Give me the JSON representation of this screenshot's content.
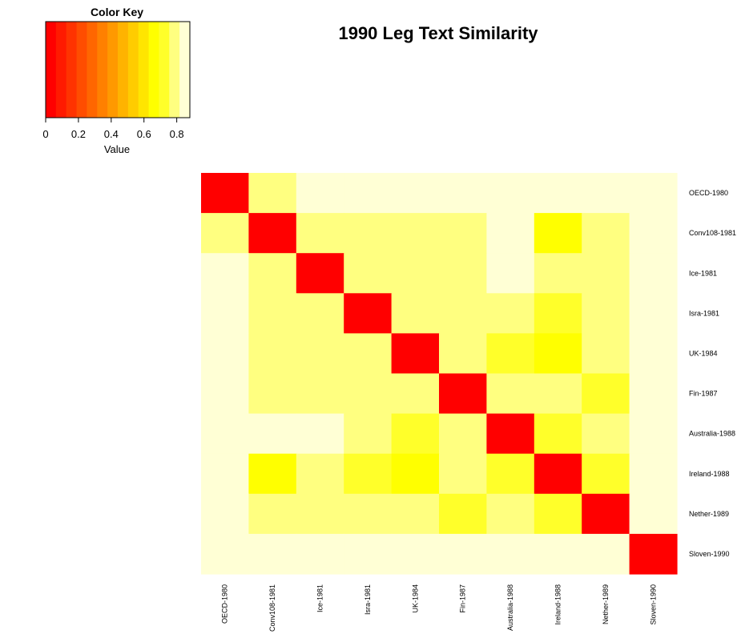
{
  "chart_data": {
    "type": "heatmap",
    "title": "1990 Leg Text Similarity",
    "color_key": {
      "title": "Color Key",
      "xlabel": "Value",
      "ticks": [
        "0",
        "0.2",
        "0.4",
        "0.6",
        "0.8"
      ],
      "tick_values": [
        0,
        0.2,
        0.4,
        0.6,
        0.8
      ],
      "range": [
        0,
        0.88
      ],
      "colors": [
        "#FF0000",
        "#FF1A00",
        "#FF3300",
        "#FF4D00",
        "#FF6600",
        "#FF8000",
        "#FF9900",
        "#FFB300",
        "#FFCC00",
        "#FFE500",
        "#FFFF00",
        "#FFFF2A",
        "#FFFF80",
        "#FFFFD5"
      ]
    },
    "rows": [
      "OECD-1980",
      "Conv108-1981",
      "Ice-1981",
      "Isra-1981",
      "UK-1984",
      "Fin-1987",
      "Australia-1988",
      "Ireland-1988",
      "Nether-1989",
      "Sloven-1990"
    ],
    "columns": [
      "OECD-1980",
      "Conv108-1981",
      "Ice-1981",
      "Isra-1981",
      "UK-1984",
      "Fin-1987",
      "Australia-1988",
      "Ireland-1988",
      "Nether-1989",
      "Sloven-1990"
    ],
    "colors": [
      [
        "#FF0000",
        "#FFFF80",
        "#FFFFD5",
        "#FFFFD5",
        "#FFFFD5",
        "#FFFFD5",
        "#FFFFD5",
        "#FFFFD5",
        "#FFFFD5",
        "#FFFFD5"
      ],
      [
        "#FFFF80",
        "#FF0000",
        "#FFFF80",
        "#FFFF80",
        "#FFFF80",
        "#FFFF80",
        "#FFFFD5",
        "#FFFF00",
        "#FFFF80",
        "#FFFFD5"
      ],
      [
        "#FFFFD5",
        "#FFFF80",
        "#FF0000",
        "#FFFF80",
        "#FFFF80",
        "#FFFF80",
        "#FFFFD5",
        "#FFFF80",
        "#FFFF80",
        "#FFFFD5"
      ],
      [
        "#FFFFD5",
        "#FFFF80",
        "#FFFF80",
        "#FF0000",
        "#FFFF80",
        "#FFFF80",
        "#FFFF80",
        "#FFFF2A",
        "#FFFF80",
        "#FFFFD5"
      ],
      [
        "#FFFFD5",
        "#FFFF80",
        "#FFFF80",
        "#FFFF80",
        "#FF0000",
        "#FFFF80",
        "#FFFF2A",
        "#FFFF00",
        "#FFFF80",
        "#FFFFD5"
      ],
      [
        "#FFFFD5",
        "#FFFF80",
        "#FFFF80",
        "#FFFF80",
        "#FFFF80",
        "#FF0000",
        "#FFFF80",
        "#FFFF80",
        "#FFFF2A",
        "#FFFFD5"
      ],
      [
        "#FFFFD5",
        "#FFFFD5",
        "#FFFFD5",
        "#FFFF80",
        "#FFFF2A",
        "#FFFF80",
        "#FF0000",
        "#FFFF2A",
        "#FFFF80",
        "#FFFFD5"
      ],
      [
        "#FFFFD5",
        "#FFFF00",
        "#FFFF80",
        "#FFFF2A",
        "#FFFF00",
        "#FFFF80",
        "#FFFF2A",
        "#FF0000",
        "#FFFF2A",
        "#FFFFD5"
      ],
      [
        "#FFFFD5",
        "#FFFF80",
        "#FFFF80",
        "#FFFF80",
        "#FFFF80",
        "#FFFF2A",
        "#FFFF80",
        "#FFFF2A",
        "#FF0000",
        "#FFFFD5"
      ],
      [
        "#FFFFD5",
        "#FFFFD5",
        "#FFFFD5",
        "#FFFFD5",
        "#FFFFD5",
        "#FFFFD5",
        "#FFFFD5",
        "#FFFFD5",
        "#FFFFD5",
        "#FF0000"
      ]
    ]
  }
}
